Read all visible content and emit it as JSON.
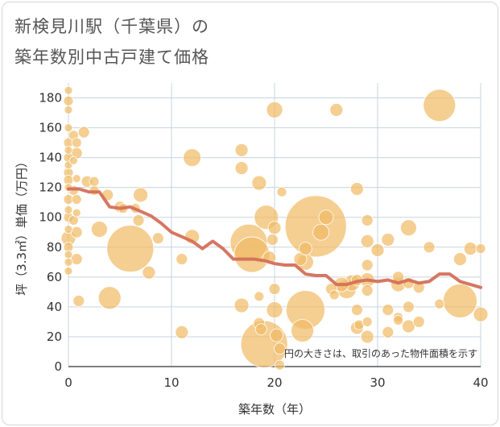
{
  "title": {
    "line1": "新検見川駅（千葉県）の",
    "line2": "築年数別中古戸建て価格"
  },
  "chart_data": {
    "type": "scatter",
    "xlabel": "築年数（年）",
    "ylabel": "坪（3.3㎡）単価（万円）",
    "annotation": "円の大きさは、取引のあった物件面積を示す",
    "xlim": [
      0,
      40
    ],
    "ylim": [
      0,
      190
    ],
    "xticks": [
      0,
      10,
      20,
      30,
      40
    ],
    "yticks": [
      0,
      20,
      40,
      60,
      80,
      100,
      120,
      140,
      160,
      180
    ],
    "grid": true,
    "colors": {
      "bubble": "#f1bb67",
      "line": "#d4705a",
      "grid": "#c7d3df"
    },
    "bubbles": [
      {
        "x": 0,
        "y": 185,
        "r": 5
      },
      {
        "x": 0,
        "y": 178,
        "r": 6
      },
      {
        "x": 0,
        "y": 172,
        "r": 5
      },
      {
        "x": 0,
        "y": 160,
        "r": 5
      },
      {
        "x": 0,
        "y": 150,
        "r": 6
      },
      {
        "x": 0,
        "y": 145,
        "r": 5
      },
      {
        "x": 0,
        "y": 140,
        "r": 6
      },
      {
        "x": 0,
        "y": 135,
        "r": 5
      },
      {
        "x": 0,
        "y": 130,
        "r": 6
      },
      {
        "x": 0,
        "y": 125,
        "r": 6
      },
      {
        "x": 0,
        "y": 120,
        "r": 5
      },
      {
        "x": 0,
        "y": 112,
        "r": 6
      },
      {
        "x": 0,
        "y": 105,
        "r": 5
      },
      {
        "x": 0,
        "y": 100,
        "r": 6
      },
      {
        "x": 0,
        "y": 92,
        "r": 5
      },
      {
        "x": 0,
        "y": 86,
        "r": 9
      },
      {
        "x": 0,
        "y": 80,
        "r": 6
      },
      {
        "x": 0,
        "y": 75,
        "r": 5
      },
      {
        "x": 0,
        "y": 70,
        "r": 5
      },
      {
        "x": 0,
        "y": 64,
        "r": 5
      },
      {
        "x": 0.5,
        "y": 155,
        "r": 6
      },
      {
        "x": 0.5,
        "y": 138,
        "r": 5
      },
      {
        "x": 0.5,
        "y": 118,
        "r": 6
      },
      {
        "x": 0.5,
        "y": 98,
        "r": 6
      },
      {
        "x": 0.8,
        "y": 150,
        "r": 6
      },
      {
        "x": 0.8,
        "y": 143,
        "r": 7
      },
      {
        "x": 0.8,
        "y": 126,
        "r": 5
      },
      {
        "x": 0.8,
        "y": 112,
        "r": 6
      },
      {
        "x": 0.8,
        "y": 103,
        "r": 5
      },
      {
        "x": 0.8,
        "y": 90,
        "r": 7
      },
      {
        "x": 0.8,
        "y": 72,
        "r": 7
      },
      {
        "x": 1,
        "y": 44,
        "r": 7
      },
      {
        "x": 1.5,
        "y": 157,
        "r": 7
      },
      {
        "x": 1.8,
        "y": 124,
        "r": 7
      },
      {
        "x": 2.5,
        "y": 118,
        "r": 6
      },
      {
        "x": 2.5,
        "y": 124,
        "r": 6
      },
      {
        "x": 3,
        "y": 92,
        "r": 10
      },
      {
        "x": 3.8,
        "y": 115,
        "r": 7
      },
      {
        "x": 5,
        "y": 107,
        "r": 7
      },
      {
        "x": 4,
        "y": 46,
        "r": 14
      },
      {
        "x": 5.3,
        "y": 106,
        "r": 6
      },
      {
        "x": 6,
        "y": 79,
        "r": 29
      },
      {
        "x": 6.5,
        "y": 106,
        "r": 6
      },
      {
        "x": 6.8,
        "y": 98,
        "r": 7
      },
      {
        "x": 7,
        "y": 115,
        "r": 9
      },
      {
        "x": 7.8,
        "y": 63,
        "r": 8
      },
      {
        "x": 8.7,
        "y": 86,
        "r": 7
      },
      {
        "x": 11,
        "y": 72,
        "r": 7
      },
      {
        "x": 11,
        "y": 23,
        "r": 8
      },
      {
        "x": 12,
        "y": 140,
        "r": 11
      },
      {
        "x": 12,
        "y": 87,
        "r": 9
      },
      {
        "x": 16.8,
        "y": 145,
        "r": 8
      },
      {
        "x": 16.8,
        "y": 133,
        "r": 8
      },
      {
        "x": 16.8,
        "y": 41,
        "r": 9
      },
      {
        "x": 17.5,
        "y": 83,
        "r": 23
      },
      {
        "x": 17.8,
        "y": 75,
        "r": 22
      },
      {
        "x": 18.5,
        "y": 123,
        "r": 9
      },
      {
        "x": 18.5,
        "y": 47,
        "r": 6
      },
      {
        "x": 18.5,
        "y": 29,
        "r": 7
      },
      {
        "x": 18.7,
        "y": 25,
        "r": 7
      },
      {
        "x": 19,
        "y": 15,
        "r": 29
      },
      {
        "x": 19.2,
        "y": 100,
        "r": 15
      },
      {
        "x": 19.5,
        "y": 73,
        "r": 8
      },
      {
        "x": 19.8,
        "y": 85,
        "r": 7
      },
      {
        "x": 20,
        "y": 172,
        "r": 10
      },
      {
        "x": 20,
        "y": 93,
        "r": 8
      },
      {
        "x": 20,
        "y": 52,
        "r": 7
      },
      {
        "x": 20,
        "y": 38,
        "r": 10
      },
      {
        "x": 20.2,
        "y": 21,
        "r": 8
      },
      {
        "x": 20.5,
        "y": 12,
        "r": 7
      },
      {
        "x": 20.5,
        "y": 1,
        "r": 6
      },
      {
        "x": 20.7,
        "y": 117,
        "r": 6
      },
      {
        "x": 22.5,
        "y": 72,
        "r": 8
      },
      {
        "x": 23,
        "y": 79,
        "r": 8
      },
      {
        "x": 23,
        "y": 70,
        "r": 10
      },
      {
        "x": 23,
        "y": 38,
        "r": 24
      },
      {
        "x": 22.7,
        "y": 24,
        "r": 14
      },
      {
        "x": 24,
        "y": 94,
        "r": 38
      },
      {
        "x": 24.5,
        "y": 90,
        "r": 10
      },
      {
        "x": 25,
        "y": 100,
        "r": 9
      },
      {
        "x": 25.5,
        "y": 52,
        "r": 7
      },
      {
        "x": 25.8,
        "y": 48,
        "r": 6
      },
      {
        "x": 26,
        "y": 172,
        "r": 8
      },
      {
        "x": 26.5,
        "y": 55,
        "r": 9
      },
      {
        "x": 27,
        "y": 52,
        "r": 12
      },
      {
        "x": 27.5,
        "y": 56,
        "r": 10
      },
      {
        "x": 28,
        "y": 119,
        "r": 8
      },
      {
        "x": 28,
        "y": 58,
        "r": 7
      },
      {
        "x": 28,
        "y": 38,
        "r": 7
      },
      {
        "x": 28,
        "y": 26,
        "r": 8
      },
      {
        "x": 28.2,
        "y": 28,
        "r": 6
      },
      {
        "x": 29,
        "y": 98,
        "r": 7
      },
      {
        "x": 29,
        "y": 84,
        "r": 8
      },
      {
        "x": 29,
        "y": 68,
        "r": 7
      },
      {
        "x": 29,
        "y": 58,
        "r": 9
      },
      {
        "x": 29,
        "y": 51,
        "r": 7
      },
      {
        "x": 29,
        "y": 30,
        "r": 6
      },
      {
        "x": 29,
        "y": 20,
        "r": 8
      },
      {
        "x": 30,
        "y": 78,
        "r": 8
      },
      {
        "x": 31,
        "y": 85,
        "r": 8
      },
      {
        "x": 31,
        "y": 38,
        "r": 7
      },
      {
        "x": 31,
        "y": 23,
        "r": 7
      },
      {
        "x": 32,
        "y": 60,
        "r": 7
      },
      {
        "x": 32,
        "y": 55,
        "r": 9
      },
      {
        "x": 32,
        "y": 33,
        "r": 6
      },
      {
        "x": 32,
        "y": 31,
        "r": 6
      },
      {
        "x": 33,
        "y": 93,
        "r": 10
      },
      {
        "x": 33,
        "y": 56,
        "r": 7
      },
      {
        "x": 33,
        "y": 40,
        "r": 7
      },
      {
        "x": 33,
        "y": 27,
        "r": 8
      },
      {
        "x": 34,
        "y": 53,
        "r": 7
      },
      {
        "x": 34,
        "y": 30,
        "r": 7
      },
      {
        "x": 35,
        "y": 80,
        "r": 7
      },
      {
        "x": 36,
        "y": 175,
        "r": 20
      },
      {
        "x": 36,
        "y": 42,
        "r": 6
      },
      {
        "x": 38,
        "y": 44,
        "r": 21
      },
      {
        "x": 38,
        "y": 72,
        "r": 8
      },
      {
        "x": 39,
        "y": 79,
        "r": 8
      },
      {
        "x": 40,
        "y": 79,
        "r": 6
      },
      {
        "x": 40,
        "y": 35,
        "r": 9
      }
    ],
    "line": {
      "x": [
        0,
        1,
        2,
        3,
        4,
        5,
        6,
        7,
        8,
        9,
        10,
        11,
        12,
        13,
        14,
        15,
        16,
        17,
        18,
        19,
        20,
        21,
        22,
        23,
        24,
        25,
        26,
        27,
        28,
        29,
        30,
        31,
        32,
        33,
        34,
        35,
        36,
        37,
        38,
        39,
        40
      ],
      "y": [
        119,
        119,
        117,
        117,
        107,
        106,
        107,
        104,
        101,
        96,
        90,
        87,
        84,
        79,
        84,
        79,
        72,
        72,
        72,
        71,
        69,
        68,
        68,
        62,
        61,
        61,
        55,
        55,
        57,
        58,
        57,
        58,
        56,
        58,
        56,
        57,
        62,
        62,
        57,
        55,
        53
      ]
    }
  }
}
